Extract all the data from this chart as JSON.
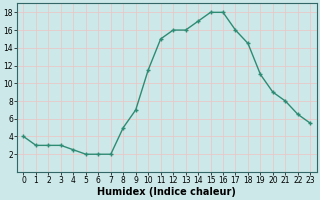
{
  "x": [
    0,
    1,
    2,
    3,
    4,
    5,
    6,
    7,
    8,
    9,
    10,
    11,
    12,
    13,
    14,
    15,
    16,
    17,
    18,
    19,
    20,
    21,
    22,
    23
  ],
  "y": [
    4,
    3,
    3,
    3,
    2.5,
    2,
    2,
    2,
    5,
    7,
    11.5,
    15,
    16,
    16,
    17,
    18,
    18,
    16,
    14.5,
    11,
    9,
    8,
    6.5,
    5.5
  ],
  "line_color": "#2e8b74",
  "marker": "+",
  "marker_size": 3,
  "bg_color": "#cce8e8",
  "grid_color": "#e8c8c8",
  "xlabel": "Humidex (Indice chaleur)",
  "xlim": [
    -0.5,
    23.5
  ],
  "ylim": [
    0,
    19
  ],
  "yticks": [
    2,
    4,
    6,
    8,
    10,
    12,
    14,
    16,
    18
  ],
  "xticks": [
    0,
    1,
    2,
    3,
    4,
    5,
    6,
    7,
    8,
    9,
    10,
    11,
    12,
    13,
    14,
    15,
    16,
    17,
    18,
    19,
    20,
    21,
    22,
    23
  ],
  "tick_fontsize": 5.5,
  "xlabel_fontsize": 7,
  "line_width": 1.0,
  "marker_edge_width": 1.0
}
